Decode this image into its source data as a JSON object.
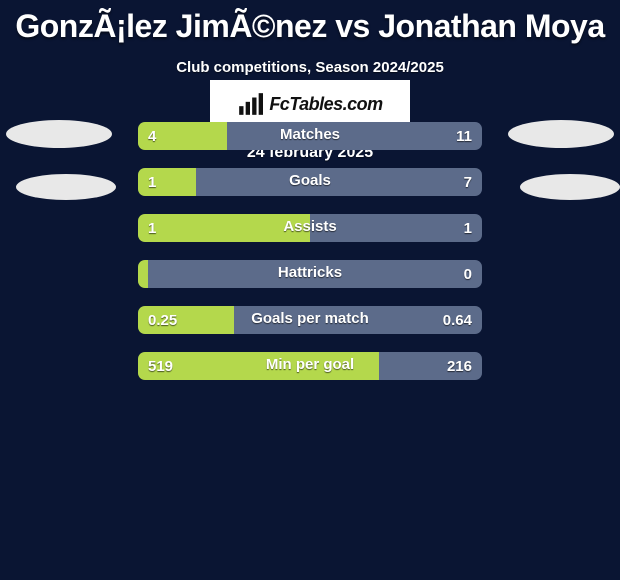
{
  "background_color": "#0a1533",
  "title": {
    "text": "GonzÃ¡lez JimÃ©nez vs Jonathan Moya",
    "color": "#ffffff",
    "fontsize": 32
  },
  "subtitle": {
    "text": "Club competitions, Season 2024/2025",
    "fontsize": 15
  },
  "avatars": {
    "left": [
      {
        "color": "#e8e8e8"
      },
      {
        "color": "#e8e8e8"
      }
    ],
    "right": [
      {
        "color": "#e8e8e8"
      },
      {
        "color": "#e8e8e8"
      }
    ]
  },
  "colors": {
    "left_seg": "#b4d84c",
    "right_seg": "#5c6b8a",
    "bar_radius": 7
  },
  "bars": [
    {
      "label": "Matches",
      "left_val": "4",
      "right_val": "11",
      "left_pct": 26
    },
    {
      "label": "Goals",
      "left_val": "1",
      "right_val": "7",
      "left_pct": 17
    },
    {
      "label": "Assists",
      "left_val": "1",
      "right_val": "1",
      "left_pct": 50
    },
    {
      "label": "Hattricks",
      "left_val": "0",
      "right_val": "0",
      "left_pct": 3
    },
    {
      "label": "Goals per match",
      "left_val": "0.25",
      "right_val": "0.64",
      "left_pct": 28
    },
    {
      "label": "Min per goal",
      "left_val": "519",
      "right_val": "216",
      "left_pct": 70
    }
  ],
  "logo": {
    "text": "FcTables.com"
  },
  "date": "24 february 2025"
}
